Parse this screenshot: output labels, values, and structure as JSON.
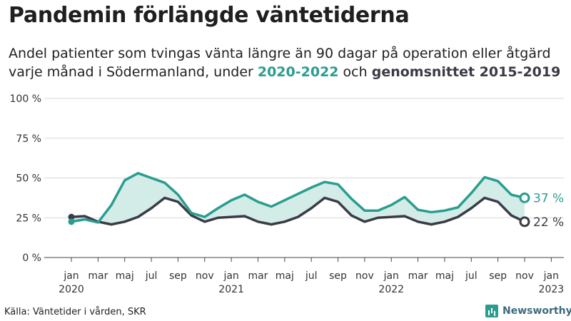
{
  "title": "Pandemin förlängde väntetiderna",
  "subtitle": {
    "line1": "Andel patienter som tvingas vänta längre än 90 dagar på operation eller åtgärd",
    "line2_prefix": "varje månad i Södermanland, under ",
    "highlight_recent": "2020-2022",
    "line2_mid": " och ",
    "highlight_avg": "genomsnittet 2015-2019"
  },
  "source": "Källa: Väntetider i vården, SKR",
  "brand": "Newsworthy",
  "colors": {
    "recent": "#2a9d8f",
    "average": "#3b3b46",
    "fill": "#d3ece8",
    "grid": "#d9d9d9"
  },
  "chart_data": {
    "type": "line",
    "y_ticks": [
      "100 %",
      "75 %",
      "50 %",
      "25 %",
      "0 %"
    ],
    "ylim": [
      0,
      100
    ],
    "x_ticks": [
      {
        "label": "jan",
        "year": "2020",
        "index": 0
      },
      {
        "label": "mar",
        "year": "",
        "index": 2
      },
      {
        "label": "maj",
        "year": "",
        "index": 4
      },
      {
        "label": "jul",
        "year": "",
        "index": 6
      },
      {
        "label": "sep",
        "year": "",
        "index": 8
      },
      {
        "label": "nov",
        "year": "",
        "index": 10
      },
      {
        "label": "jan",
        "year": "2021",
        "index": 12
      },
      {
        "label": "mar",
        "year": "",
        "index": 14
      },
      {
        "label": "maj",
        "year": "",
        "index": 16
      },
      {
        "label": "jul",
        "year": "",
        "index": 18
      },
      {
        "label": "sep",
        "year": "",
        "index": 20
      },
      {
        "label": "nov",
        "year": "",
        "index": 22
      },
      {
        "label": "jan",
        "year": "2022",
        "index": 24
      },
      {
        "label": "mar",
        "year": "",
        "index": 26
      },
      {
        "label": "maj",
        "year": "",
        "index": 28
      },
      {
        "label": "jul",
        "year": "",
        "index": 30
      },
      {
        "label": "sep",
        "year": "",
        "index": 32
      },
      {
        "label": "nov",
        "year": "",
        "index": 34
      },
      {
        "label": "jan",
        "year": "2023",
        "index": 36
      }
    ],
    "series": [
      {
        "key": "recent",
        "end_label": "37 %",
        "values": [
          22.5,
          24,
          22,
          33,
          48.5,
          53,
          50,
          47,
          39.5,
          28,
          25.5,
          31,
          36,
          39.5,
          35,
          32,
          36,
          40,
          44,
          47.5,
          46,
          37,
          29.5,
          29.5,
          33,
          38,
          30,
          28.5,
          29.5,
          31.5,
          40.5,
          50.5,
          48,
          39.5,
          37.5
        ]
      },
      {
        "key": "average",
        "end_label": "22 %",
        "values": [
          25.5,
          26,
          22.5,
          20.8,
          22.5,
          25.5,
          31,
          37.5,
          35,
          26.5,
          22.5,
          25,
          25.5,
          26,
          22.5,
          20.8,
          22.5,
          25.5,
          31,
          37.5,
          35,
          26.5,
          22.5,
          25,
          25.5,
          26,
          22.5,
          20.8,
          22.5,
          25.5,
          31,
          37.5,
          35,
          26.5,
          22.5
        ]
      }
    ]
  }
}
